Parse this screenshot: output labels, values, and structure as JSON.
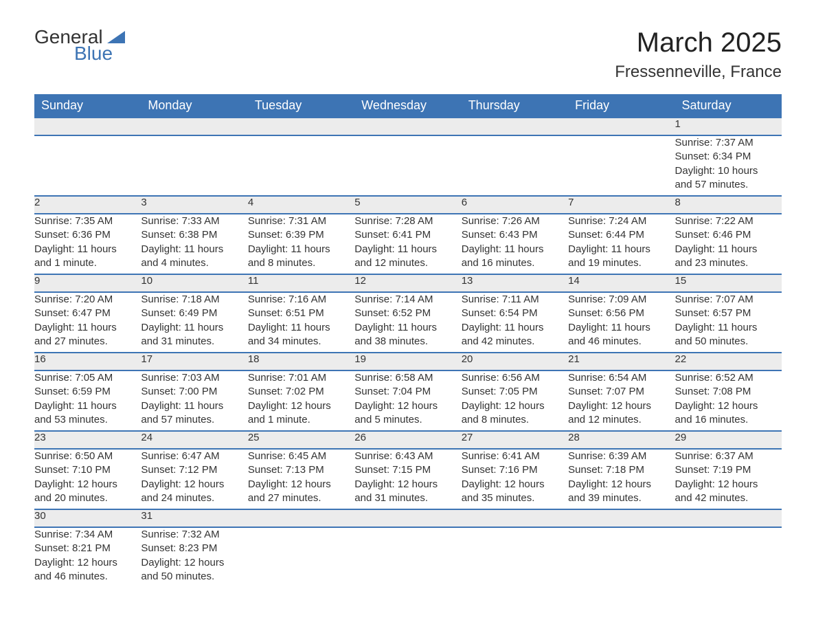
{
  "logo": {
    "word1": "General",
    "word2": "Blue"
  },
  "title": "March 2025",
  "location": "Fressenneville, France",
  "colors": {
    "header_bg": "#3d74b4",
    "header_text": "#ffffff",
    "daynum_bg": "#ececec",
    "row_border": "#3d74b4",
    "body_text": "#333333",
    "page_bg": "#ffffff"
  },
  "typography": {
    "title_fontsize": 40,
    "location_fontsize": 24,
    "header_fontsize": 18,
    "daynum_fontsize": 18,
    "cell_fontsize": 15,
    "font_family": "Arial"
  },
  "layout": {
    "columns": 7,
    "weeks": 6
  },
  "days_of_week": [
    "Sunday",
    "Monday",
    "Tuesday",
    "Wednesday",
    "Thursday",
    "Friday",
    "Saturday"
  ],
  "weeks": [
    [
      null,
      null,
      null,
      null,
      null,
      null,
      {
        "n": "1",
        "sr": "Sunrise: 7:37 AM",
        "ss": "Sunset: 6:34 PM",
        "d1": "Daylight: 10 hours",
        "d2": "and 57 minutes."
      }
    ],
    [
      {
        "n": "2",
        "sr": "Sunrise: 7:35 AM",
        "ss": "Sunset: 6:36 PM",
        "d1": "Daylight: 11 hours",
        "d2": "and 1 minute."
      },
      {
        "n": "3",
        "sr": "Sunrise: 7:33 AM",
        "ss": "Sunset: 6:38 PM",
        "d1": "Daylight: 11 hours",
        "d2": "and 4 minutes."
      },
      {
        "n": "4",
        "sr": "Sunrise: 7:31 AM",
        "ss": "Sunset: 6:39 PM",
        "d1": "Daylight: 11 hours",
        "d2": "and 8 minutes."
      },
      {
        "n": "5",
        "sr": "Sunrise: 7:28 AM",
        "ss": "Sunset: 6:41 PM",
        "d1": "Daylight: 11 hours",
        "d2": "and 12 minutes."
      },
      {
        "n": "6",
        "sr": "Sunrise: 7:26 AM",
        "ss": "Sunset: 6:43 PM",
        "d1": "Daylight: 11 hours",
        "d2": "and 16 minutes."
      },
      {
        "n": "7",
        "sr": "Sunrise: 7:24 AM",
        "ss": "Sunset: 6:44 PM",
        "d1": "Daylight: 11 hours",
        "d2": "and 19 minutes."
      },
      {
        "n": "8",
        "sr": "Sunrise: 7:22 AM",
        "ss": "Sunset: 6:46 PM",
        "d1": "Daylight: 11 hours",
        "d2": "and 23 minutes."
      }
    ],
    [
      {
        "n": "9",
        "sr": "Sunrise: 7:20 AM",
        "ss": "Sunset: 6:47 PM",
        "d1": "Daylight: 11 hours",
        "d2": "and 27 minutes."
      },
      {
        "n": "10",
        "sr": "Sunrise: 7:18 AM",
        "ss": "Sunset: 6:49 PM",
        "d1": "Daylight: 11 hours",
        "d2": "and 31 minutes."
      },
      {
        "n": "11",
        "sr": "Sunrise: 7:16 AM",
        "ss": "Sunset: 6:51 PM",
        "d1": "Daylight: 11 hours",
        "d2": "and 34 minutes."
      },
      {
        "n": "12",
        "sr": "Sunrise: 7:14 AM",
        "ss": "Sunset: 6:52 PM",
        "d1": "Daylight: 11 hours",
        "d2": "and 38 minutes."
      },
      {
        "n": "13",
        "sr": "Sunrise: 7:11 AM",
        "ss": "Sunset: 6:54 PM",
        "d1": "Daylight: 11 hours",
        "d2": "and 42 minutes."
      },
      {
        "n": "14",
        "sr": "Sunrise: 7:09 AM",
        "ss": "Sunset: 6:56 PM",
        "d1": "Daylight: 11 hours",
        "d2": "and 46 minutes."
      },
      {
        "n": "15",
        "sr": "Sunrise: 7:07 AM",
        "ss": "Sunset: 6:57 PM",
        "d1": "Daylight: 11 hours",
        "d2": "and 50 minutes."
      }
    ],
    [
      {
        "n": "16",
        "sr": "Sunrise: 7:05 AM",
        "ss": "Sunset: 6:59 PM",
        "d1": "Daylight: 11 hours",
        "d2": "and 53 minutes."
      },
      {
        "n": "17",
        "sr": "Sunrise: 7:03 AM",
        "ss": "Sunset: 7:00 PM",
        "d1": "Daylight: 11 hours",
        "d2": "and 57 minutes."
      },
      {
        "n": "18",
        "sr": "Sunrise: 7:01 AM",
        "ss": "Sunset: 7:02 PM",
        "d1": "Daylight: 12 hours",
        "d2": "and 1 minute."
      },
      {
        "n": "19",
        "sr": "Sunrise: 6:58 AM",
        "ss": "Sunset: 7:04 PM",
        "d1": "Daylight: 12 hours",
        "d2": "and 5 minutes."
      },
      {
        "n": "20",
        "sr": "Sunrise: 6:56 AM",
        "ss": "Sunset: 7:05 PM",
        "d1": "Daylight: 12 hours",
        "d2": "and 8 minutes."
      },
      {
        "n": "21",
        "sr": "Sunrise: 6:54 AM",
        "ss": "Sunset: 7:07 PM",
        "d1": "Daylight: 12 hours",
        "d2": "and 12 minutes."
      },
      {
        "n": "22",
        "sr": "Sunrise: 6:52 AM",
        "ss": "Sunset: 7:08 PM",
        "d1": "Daylight: 12 hours",
        "d2": "and 16 minutes."
      }
    ],
    [
      {
        "n": "23",
        "sr": "Sunrise: 6:50 AM",
        "ss": "Sunset: 7:10 PM",
        "d1": "Daylight: 12 hours",
        "d2": "and 20 minutes."
      },
      {
        "n": "24",
        "sr": "Sunrise: 6:47 AM",
        "ss": "Sunset: 7:12 PM",
        "d1": "Daylight: 12 hours",
        "d2": "and 24 minutes."
      },
      {
        "n": "25",
        "sr": "Sunrise: 6:45 AM",
        "ss": "Sunset: 7:13 PM",
        "d1": "Daylight: 12 hours",
        "d2": "and 27 minutes."
      },
      {
        "n": "26",
        "sr": "Sunrise: 6:43 AM",
        "ss": "Sunset: 7:15 PM",
        "d1": "Daylight: 12 hours",
        "d2": "and 31 minutes."
      },
      {
        "n": "27",
        "sr": "Sunrise: 6:41 AM",
        "ss": "Sunset: 7:16 PM",
        "d1": "Daylight: 12 hours",
        "d2": "and 35 minutes."
      },
      {
        "n": "28",
        "sr": "Sunrise: 6:39 AM",
        "ss": "Sunset: 7:18 PM",
        "d1": "Daylight: 12 hours",
        "d2": "and 39 minutes."
      },
      {
        "n": "29",
        "sr": "Sunrise: 6:37 AM",
        "ss": "Sunset: 7:19 PM",
        "d1": "Daylight: 12 hours",
        "d2": "and 42 minutes."
      }
    ],
    [
      {
        "n": "30",
        "sr": "Sunrise: 7:34 AM",
        "ss": "Sunset: 8:21 PM",
        "d1": "Daylight: 12 hours",
        "d2": "and 46 minutes."
      },
      {
        "n": "31",
        "sr": "Sunrise: 7:32 AM",
        "ss": "Sunset: 8:23 PM",
        "d1": "Daylight: 12 hours",
        "d2": "and 50 minutes."
      },
      null,
      null,
      null,
      null,
      null
    ]
  ]
}
